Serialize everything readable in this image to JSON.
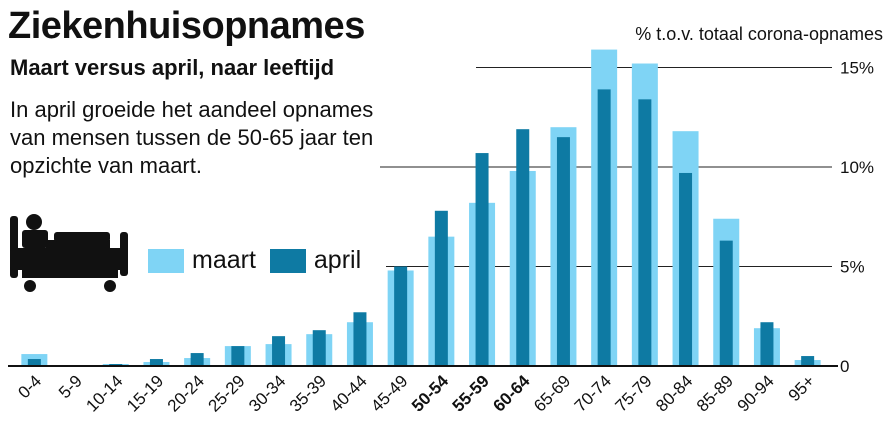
{
  "title": "Ziekenhuisopnames",
  "subtitle": "Maart versus april, naar leeftijd",
  "intro": "In april groeide het aandeel opnames van mensen tussen de 50-65 jaar ten opzichte van maart.",
  "unit_label": "% t.o.v. totaal corona-opnames",
  "colors": {
    "maart": "#7fd4f5",
    "april": "#0e7aa3",
    "grid": "#222222"
  },
  "chart_data": {
    "type": "bar",
    "ylabel": "% t.o.v. totaal corona-opnames",
    "ylim": [
      0,
      16
    ],
    "yticks": [
      {
        "value": 0,
        "label": "0"
      },
      {
        "value": 5,
        "label": "5%"
      },
      {
        "value": 10,
        "label": "10%"
      },
      {
        "value": 15,
        "label": "15%"
      }
    ],
    "categories": [
      "0-4",
      "5-9",
      "10-14",
      "15-19",
      "20-24",
      "25-29",
      "30-34",
      "35-39",
      "40-44",
      "45-49",
      "50-54",
      "55-59",
      "60-64",
      "65-69",
      "70-74",
      "75-79",
      "80-84",
      "85-89",
      "90-94",
      "95+"
    ],
    "bold_categories": [
      "50-54",
      "55-59",
      "60-64"
    ],
    "series": [
      {
        "name": "maart",
        "values": [
          0.6,
          0.0,
          0.1,
          0.2,
          0.4,
          1.0,
          1.1,
          1.6,
          2.2,
          4.8,
          6.5,
          8.2,
          9.8,
          12.0,
          15.9,
          15.2,
          11.8,
          7.4,
          1.9,
          0.3
        ]
      },
      {
        "name": "april",
        "values": [
          0.35,
          0.05,
          0.1,
          0.35,
          0.65,
          1.0,
          1.5,
          1.8,
          2.7,
          5.0,
          7.8,
          10.7,
          11.9,
          11.5,
          13.9,
          13.4,
          9.7,
          6.3,
          2.2,
          0.5
        ]
      }
    ],
    "legend_position": "middle-left",
    "grid": true
  }
}
